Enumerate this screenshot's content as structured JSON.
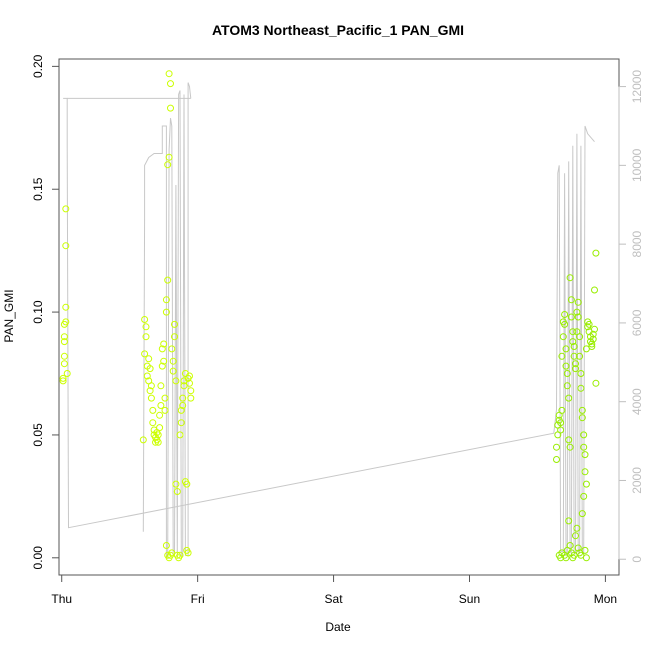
{
  "chart_data": {
    "type": "scatter",
    "title": "ATOM3 Northeast_Pacific_1 PAN_GMI",
    "xlabel": "Date",
    "ylabel": "PAN_GMI",
    "x_ticks": [
      "Thu",
      "Fri",
      "Sat",
      "Sun",
      "Mon"
    ],
    "y_ticks": [
      "0.00",
      "0.05",
      "0.10",
      "0.15",
      "0.20"
    ],
    "y2_ticks": [
      "0",
      "2000",
      "4000",
      "6000",
      "8000",
      "10000",
      "12000"
    ],
    "xlim": [
      -0.02,
      4.1
    ],
    "ylim": [
      -0.007,
      0.203
    ],
    "y2lim": [
      -400,
      12700
    ],
    "grid": false,
    "colors": {
      "points_early": "#ccff00",
      "points_late": "#99ee00",
      "altitude_line": "#c8c8c8",
      "frame": "#555555"
    },
    "series": [
      {
        "values": [
          [
            0.01,
            0.072
          ],
          [
            0.01,
            0.073
          ],
          [
            0.02,
            0.079
          ],
          [
            0.02,
            0.082
          ],
          [
            0.02,
            0.088
          ],
          [
            0.02,
            0.095
          ],
          [
            0.03,
            0.096
          ],
          [
            0.03,
            0.102
          ],
          [
            0.03,
            0.127
          ],
          [
            0.03,
            0.142
          ],
          [
            0.04,
            0.075
          ],
          [
            0.02,
            0.09
          ],
          [
            0.6,
            0.048
          ],
          [
            0.61,
            0.083
          ],
          [
            0.61,
            0.097
          ],
          [
            0.62,
            0.094
          ],
          [
            0.62,
            0.09
          ],
          [
            0.63,
            0.078
          ],
          [
            0.63,
            0.074
          ],
          [
            0.64,
            0.072
          ],
          [
            0.64,
            0.081
          ],
          [
            0.65,
            0.068
          ],
          [
            0.65,
            0.077
          ],
          [
            0.66,
            0.065
          ],
          [
            0.66,
            0.07
          ],
          [
            0.67,
            0.06
          ],
          [
            0.67,
            0.055
          ],
          [
            0.68,
            0.052
          ],
          [
            0.68,
            0.05
          ],
          [
            0.69,
            0.049
          ],
          [
            0.69,
            0.047
          ],
          [
            0.7,
            0.048
          ],
          [
            0.7,
            0.051
          ],
          [
            0.71,
            0.047
          ],
          [
            0.71,
            0.05
          ],
          [
            0.72,
            0.053
          ],
          [
            0.72,
            0.058
          ],
          [
            0.73,
            0.062
          ],
          [
            0.73,
            0.07
          ],
          [
            0.74,
            0.078
          ],
          [
            0.74,
            0.085
          ],
          [
            0.75,
            0.087
          ],
          [
            0.75,
            0.08
          ],
          [
            0.76,
            0.065
          ],
          [
            0.76,
            0.06
          ],
          [
            0.77,
            0.1
          ],
          [
            0.77,
            0.105
          ],
          [
            0.78,
            0.113
          ],
          [
            0.78,
            0.16
          ],
          [
            0.79,
            0.163
          ],
          [
            0.79,
            0.197
          ],
          [
            0.8,
            0.193
          ],
          [
            0.8,
            0.183
          ],
          [
            0.77,
            0.005
          ],
          [
            0.78,
            0.001
          ],
          [
            0.79,
            0.0
          ],
          [
            0.8,
            0.001
          ],
          [
            0.81,
            0.002
          ],
          [
            0.81,
            0.085
          ],
          [
            0.82,
            0.08
          ],
          [
            0.82,
            0.076
          ],
          [
            0.83,
            0.09
          ],
          [
            0.83,
            0.095
          ],
          [
            0.84,
            0.072
          ],
          [
            0.84,
            0.03
          ],
          [
            0.85,
            0.027
          ],
          [
            0.85,
            0.001
          ],
          [
            0.86,
            0.0
          ],
          [
            0.87,
            0.001
          ],
          [
            0.87,
            0.05
          ],
          [
            0.88,
            0.055
          ],
          [
            0.88,
            0.06
          ],
          [
            0.89,
            0.062
          ],
          [
            0.89,
            0.065
          ],
          [
            0.9,
            0.07
          ],
          [
            0.9,
            0.072
          ],
          [
            0.91,
            0.075
          ],
          [
            0.91,
            0.031
          ],
          [
            0.92,
            0.03
          ],
          [
            0.92,
            0.003
          ],
          [
            0.93,
            0.002
          ],
          [
            0.93,
            0.073
          ],
          [
            0.94,
            0.074
          ],
          [
            0.94,
            0.071
          ],
          [
            0.95,
            0.068
          ],
          [
            0.95,
            0.065
          ]
        ]
      },
      {
        "values": [
          [
            3.64,
            0.04
          ],
          [
            3.64,
            0.045
          ],
          [
            3.65,
            0.05
          ],
          [
            3.65,
            0.054
          ],
          [
            3.66,
            0.056
          ],
          [
            3.66,
            0.058
          ],
          [
            3.67,
            0.055
          ],
          [
            3.67,
            0.052
          ],
          [
            3.68,
            0.06
          ],
          [
            3.68,
            0.082
          ],
          [
            3.69,
            0.09
          ],
          [
            3.69,
            0.096
          ],
          [
            3.7,
            0.099
          ],
          [
            3.7,
            0.095
          ],
          [
            3.71,
            0.085
          ],
          [
            3.71,
            0.078
          ],
          [
            3.72,
            0.075
          ],
          [
            3.72,
            0.07
          ],
          [
            3.73,
            0.065
          ],
          [
            3.73,
            0.048
          ],
          [
            3.74,
            0.045
          ],
          [
            3.74,
            0.114
          ],
          [
            3.75,
            0.105
          ],
          [
            3.75,
            0.098
          ],
          [
            3.76,
            0.092
          ],
          [
            3.76,
            0.088
          ],
          [
            3.77,
            0.086
          ],
          [
            3.77,
            0.082
          ],
          [
            3.78,
            0.079
          ],
          [
            3.78,
            0.077
          ],
          [
            3.79,
            0.092
          ],
          [
            3.79,
            0.1
          ],
          [
            3.8,
            0.104
          ],
          [
            3.8,
            0.098
          ],
          [
            3.81,
            0.09
          ],
          [
            3.81,
            0.082
          ],
          [
            3.82,
            0.075
          ],
          [
            3.82,
            0.069
          ],
          [
            3.83,
            0.06
          ],
          [
            3.83,
            0.057
          ],
          [
            3.84,
            0.05
          ],
          [
            3.84,
            0.045
          ],
          [
            3.85,
            0.042
          ],
          [
            3.85,
            0.035
          ],
          [
            3.86,
            0.03
          ],
          [
            3.86,
            0.085
          ],
          [
            3.87,
            0.094
          ],
          [
            3.87,
            0.096
          ],
          [
            3.88,
            0.095
          ],
          [
            3.88,
            0.092
          ],
          [
            3.89,
            0.09
          ],
          [
            3.89,
            0.088
          ],
          [
            3.9,
            0.087
          ],
          [
            3.9,
            0.086
          ],
          [
            3.91,
            0.089
          ],
          [
            3.91,
            0.091
          ],
          [
            3.92,
            0.093
          ],
          [
            3.92,
            0.109
          ],
          [
            3.93,
            0.124
          ],
          [
            3.93,
            0.071
          ],
          [
            3.66,
            0.001
          ],
          [
            3.67,
            0.0
          ],
          [
            3.68,
            0.002
          ],
          [
            3.7,
            0.001
          ],
          [
            3.71,
            0.0
          ],
          [
            3.72,
            0.003
          ],
          [
            3.73,
            0.015
          ],
          [
            3.74,
            0.005
          ],
          [
            3.75,
            0.002
          ],
          [
            3.76,
            0.0
          ],
          [
            3.77,
            0.001
          ],
          [
            3.78,
            0.009
          ],
          [
            3.79,
            0.012
          ],
          [
            3.8,
            0.004
          ],
          [
            3.81,
            0.002
          ],
          [
            3.82,
            0.001
          ],
          [
            3.83,
            0.018
          ],
          [
            3.84,
            0.025
          ],
          [
            3.85,
            0.003
          ],
          [
            3.86,
            0.0
          ]
        ]
      }
    ],
    "altitude_line": [
      [
        0.01,
        11700
      ],
      [
        0.03,
        11700
      ],
      [
        0.04,
        11700
      ],
      [
        0.04,
        10500
      ],
      [
        0.05,
        800
      ],
      [
        3.62,
        3200
      ],
      [
        3.64,
        3800
      ],
      [
        3.65,
        9800
      ],
      [
        3.66,
        10000
      ],
      [
        3.67,
        200
      ],
      [
        3.69,
        200
      ],
      [
        3.7,
        9800
      ],
      [
        3.71,
        100
      ],
      [
        3.72,
        100
      ],
      [
        3.73,
        10100
      ],
      [
        3.74,
        200
      ],
      [
        3.75,
        150
      ],
      [
        3.76,
        10500
      ],
      [
        3.77,
        200
      ],
      [
        3.78,
        150
      ],
      [
        3.79,
        10800
      ],
      [
        3.8,
        200
      ],
      [
        3.81,
        150
      ],
      [
        3.82,
        10500
      ],
      [
        3.83,
        200
      ],
      [
        3.84,
        150
      ],
      [
        3.85,
        11000
      ],
      [
        3.87,
        10800
      ],
      [
        3.92,
        10600
      ]
    ],
    "altitude_segment_a": [
      [
        0.04,
        11700
      ],
      [
        0.95,
        11700
      ]
    ],
    "altitude_segment_b": [
      [
        0.6,
        700
      ],
      [
        0.61,
        8700
      ],
      [
        0.61,
        10000
      ],
      [
        0.64,
        10200
      ],
      [
        0.68,
        10300
      ],
      [
        0.7,
        10300
      ],
      [
        0.74,
        10300
      ],
      [
        0.74,
        11000
      ],
      [
        0.77,
        11000
      ],
      [
        0.77,
        50
      ],
      [
        0.78,
        50
      ],
      [
        0.79,
        10400
      ],
      [
        0.8,
        11200
      ],
      [
        0.81,
        11000
      ],
      [
        0.82,
        100
      ],
      [
        0.83,
        80
      ],
      [
        0.84,
        9500
      ],
      [
        0.85,
        50
      ],
      [
        0.86,
        11800
      ],
      [
        0.87,
        11900
      ],
      [
        0.88,
        100
      ],
      [
        0.89,
        80
      ],
      [
        0.9,
        11800
      ],
      [
        0.91,
        100
      ],
      [
        0.93,
        90
      ],
      [
        0.93,
        12100
      ],
      [
        0.94,
        12000
      ],
      [
        0.95,
        11700
      ]
    ]
  }
}
